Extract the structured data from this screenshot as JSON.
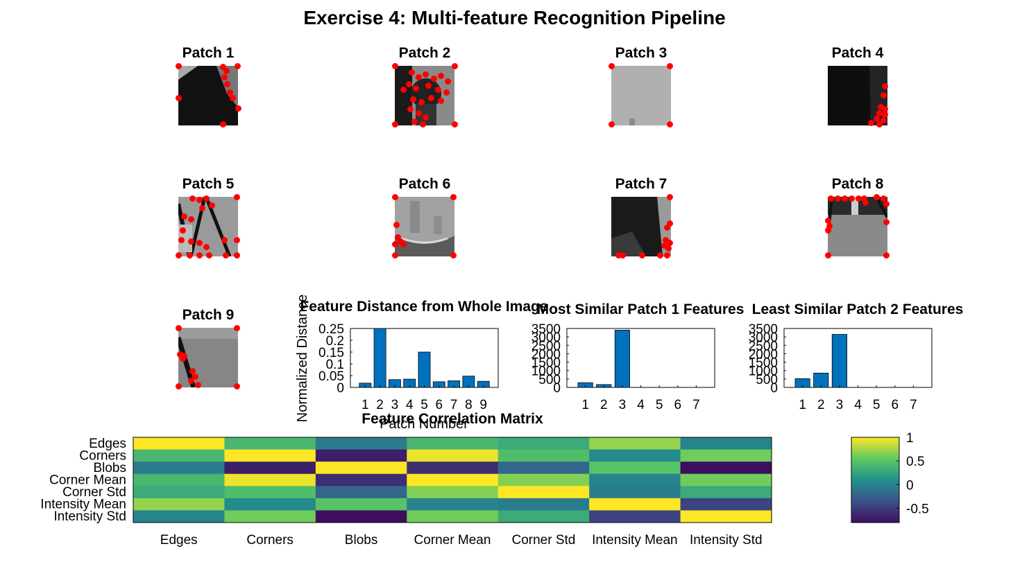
{
  "figure_title": "Exercise 4: Multi-feature Recognition Pipeline",
  "colors": {
    "bar": "#0072bd",
    "keypoint": "#ff0000",
    "axes": "#000000"
  },
  "patches": [
    {
      "label": "Patch 1"
    },
    {
      "label": "Patch 2"
    },
    {
      "label": "Patch 3"
    },
    {
      "label": "Patch 4"
    },
    {
      "label": "Patch 5"
    },
    {
      "label": "Patch 6"
    },
    {
      "label": "Patch 7"
    },
    {
      "label": "Patch 8"
    },
    {
      "label": "Patch 9"
    }
  ],
  "chart_data": [
    {
      "type": "bar",
      "title": "Feature Distance from Whole Image",
      "xlabel": "Patch Number",
      "ylabel": "Normalized Distance",
      "categories": [
        "1",
        "2",
        "3",
        "4",
        "5",
        "6",
        "7",
        "8",
        "9"
      ],
      "values": [
        0.018,
        0.25,
        0.033,
        0.035,
        0.15,
        0.024,
        0.028,
        0.048,
        0.026
      ],
      "ylim": [
        0,
        0.25
      ],
      "yticks": [
        "0",
        "0.05",
        "0.1",
        "0.15",
        "0.2",
        "0.25"
      ],
      "ytick_values": [
        0,
        0.05,
        0.1,
        0.15,
        0.2,
        0.25
      ],
      "grid": false
    },
    {
      "type": "bar",
      "title": "Most Similar Patch 1 Features",
      "xlabel": "",
      "ylabel": "",
      "categories": [
        "1",
        "2",
        "3",
        "4",
        "5",
        "6",
        "7"
      ],
      "values": [
        280,
        170,
        3400,
        5,
        3,
        5,
        3
      ],
      "ylim": [
        0,
        3500
      ],
      "yticks": [
        "0",
        "500",
        "1000",
        "1500",
        "2000",
        "2500",
        "3000",
        "3500"
      ],
      "ytick_values": [
        0,
        500,
        1000,
        1500,
        2000,
        2500,
        3000,
        3500
      ],
      "grid": false
    },
    {
      "type": "bar",
      "title": "Least Similar Patch 2 Features",
      "xlabel": "",
      "ylabel": "",
      "categories": [
        "1",
        "2",
        "3",
        "4",
        "5",
        "6",
        "7"
      ],
      "values": [
        520,
        850,
        3150,
        5,
        3,
        5,
        3
      ],
      "ylim": [
        0,
        3500
      ],
      "yticks": [
        "0",
        "500",
        "1000",
        "1500",
        "2000",
        "2500",
        "3000",
        "3500"
      ],
      "ytick_values": [
        0,
        500,
        1000,
        1500,
        2000,
        2500,
        3000,
        3500
      ],
      "grid": false
    },
    {
      "type": "heatmap",
      "title": "Feature Correlation Matrix",
      "row_labels": [
        "Edges",
        "Corners",
        "Blobs",
        "Corner Mean",
        "Corner Std",
        "Intensity Mean",
        "Intensity Std"
      ],
      "col_labels": [
        "Edges",
        "Corners",
        "Blobs",
        "Corner Mean",
        "Corner Std",
        "Intensity Mean",
        "Intensity Std"
      ],
      "matrix": [
        [
          1.0,
          0.4,
          -0.05,
          0.4,
          0.3,
          0.7,
          0.0
        ],
        [
          0.4,
          1.0,
          -0.7,
          0.95,
          0.45,
          0.05,
          0.6
        ],
        [
          -0.05,
          -0.7,
          1.0,
          -0.6,
          -0.2,
          0.5,
          -0.8
        ],
        [
          0.4,
          0.95,
          -0.6,
          1.0,
          0.65,
          0.0,
          0.6
        ],
        [
          0.3,
          0.45,
          -0.2,
          0.65,
          1.0,
          -0.05,
          0.3
        ],
        [
          0.7,
          0.05,
          0.5,
          0.0,
          -0.05,
          1.0,
          -0.45
        ],
        [
          0.0,
          0.6,
          -0.8,
          0.6,
          0.3,
          -0.45,
          1.0
        ]
      ],
      "clim": [
        -0.8,
        1.0
      ],
      "colormap": "parula",
      "colorbar_ticks": [
        "1",
        "0.5",
        "0",
        "-0.5"
      ],
      "colorbar_tick_values": [
        1,
        0.5,
        0,
        -0.5
      ]
    }
  ]
}
